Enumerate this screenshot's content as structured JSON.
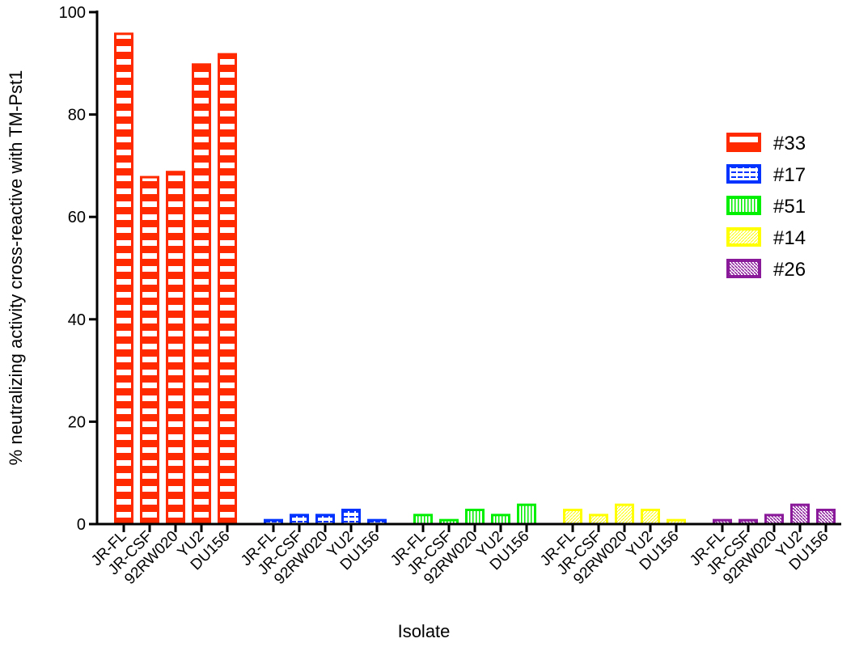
{
  "chart_data": {
    "type": "bar",
    "title": "",
    "xlabel": "Isolate",
    "ylabel": "% neutralizing activity cross-reactive with TM-Pst1",
    "ylim": [
      0,
      100
    ],
    "yticks": [
      0,
      20,
      40,
      60,
      80,
      100
    ],
    "categories": [
      "JR-FL",
      "JR-CSF",
      "92RW020",
      "YU2",
      "DU156"
    ],
    "grid": false,
    "legend_position": "right",
    "series": [
      {
        "name": "#33",
        "color": "#ff2a00",
        "pattern": "dashes",
        "values": [
          96,
          68,
          69,
          90,
          92
        ]
      },
      {
        "name": "#17",
        "color": "#0033ff",
        "pattern": "hlines",
        "values": [
          1,
          2,
          2,
          3,
          1
        ]
      },
      {
        "name": "#51",
        "color": "#00ee00",
        "pattern": "vlines",
        "values": [
          2,
          1,
          3,
          2,
          4
        ]
      },
      {
        "name": "#14",
        "color": "#ffff00",
        "pattern": "diagonal",
        "values": [
          3,
          2,
          4,
          3,
          1
        ]
      },
      {
        "name": "#26",
        "color": "#8b1a9b",
        "pattern": "crosshatch",
        "values": [
          1,
          1,
          2,
          4,
          3
        ]
      }
    ]
  }
}
